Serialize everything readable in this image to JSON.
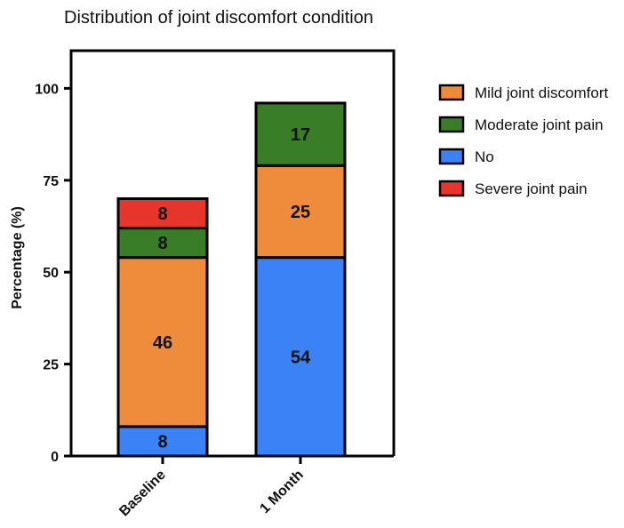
{
  "chart_data": {
    "type": "bar",
    "stacked": true,
    "title": "Distribution of joint discomfort condition",
    "ylabel": "Percentage (%)",
    "xlabel": "",
    "ylim": [
      0,
      110
    ],
    "yticks": [
      0,
      25,
      50,
      75,
      100
    ],
    "categories": [
      "Baseline",
      "1 Month"
    ],
    "series": [
      {
        "name": "No",
        "color": "#3b82f6",
        "values": [
          8,
          54
        ]
      },
      {
        "name": "Mild joint discomfort",
        "color": "#ef8c3b",
        "values": [
          46,
          25
        ]
      },
      {
        "name": "Moderate joint pain",
        "color": "#3a7d27",
        "values": [
          8,
          17
        ]
      },
      {
        "name": "Severe joint pain",
        "color": "#e8352b",
        "values": [
          8,
          null
        ]
      }
    ],
    "legend": {
      "placement": "right",
      "order": [
        "Mild joint discomfort",
        "Moderate joint pain",
        "No",
        "Severe joint pain"
      ]
    },
    "grid": false
  }
}
